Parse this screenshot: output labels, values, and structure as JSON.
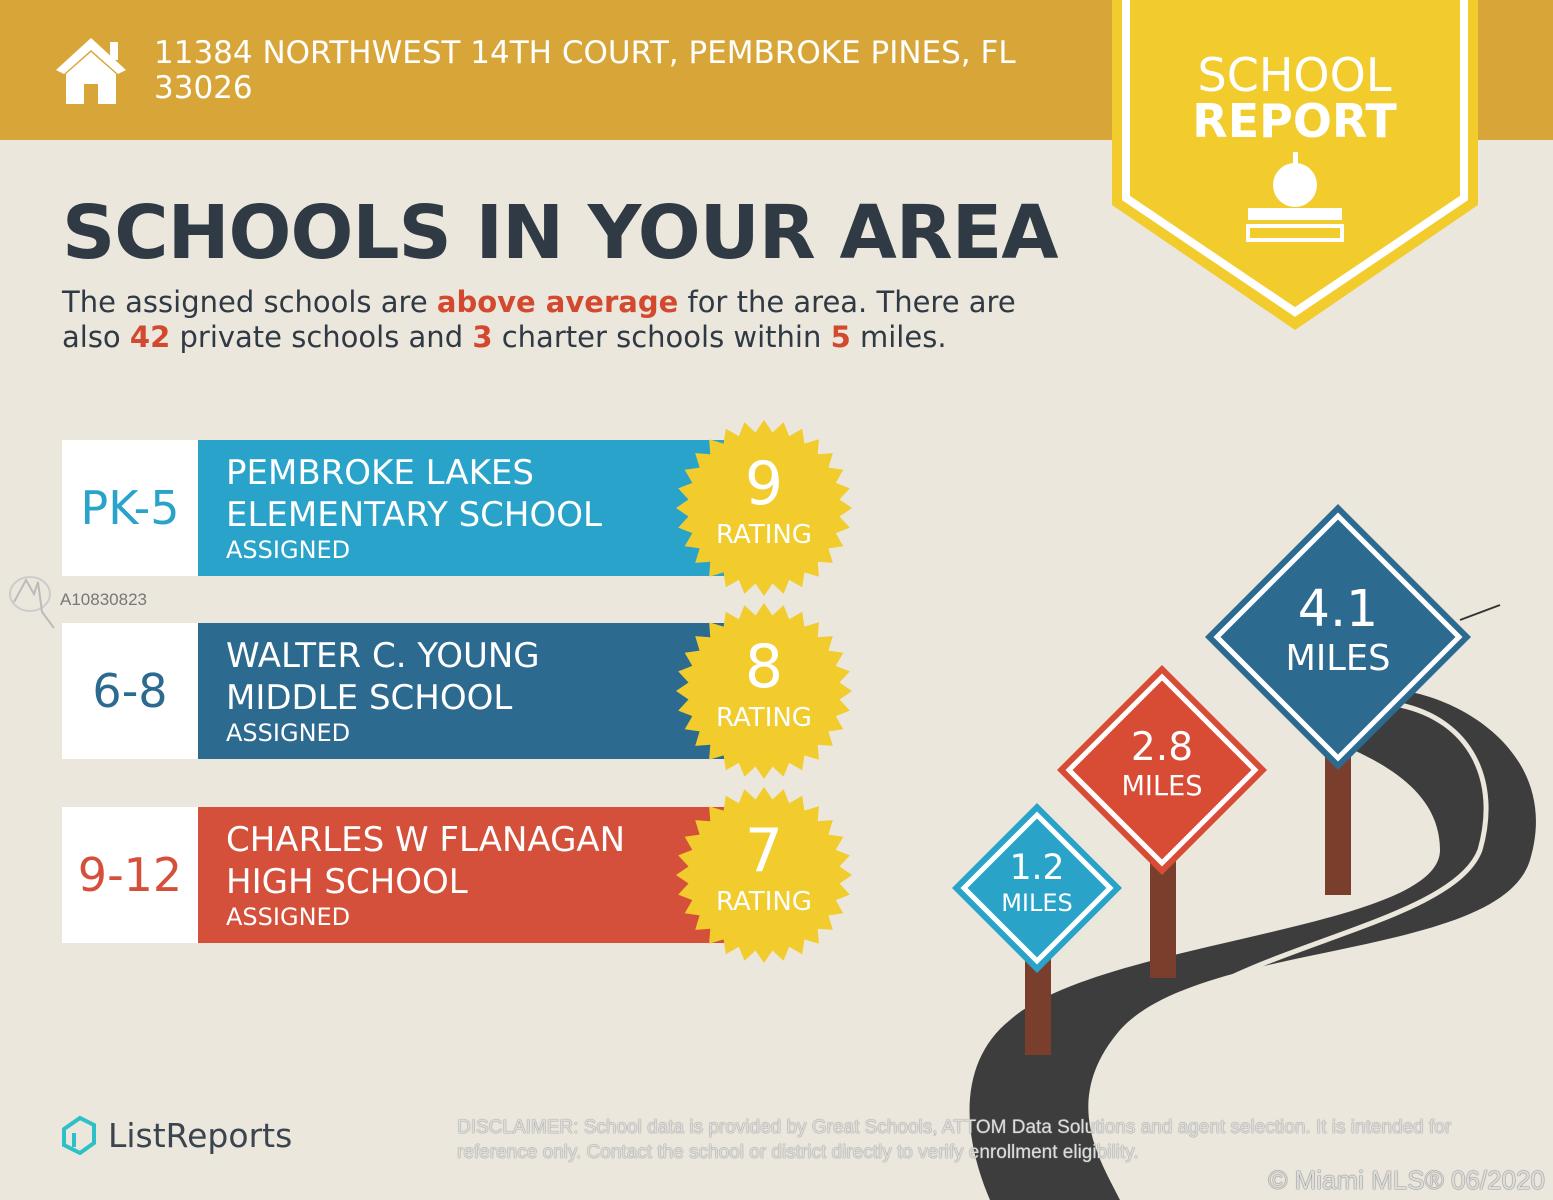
{
  "header": {
    "address": "11384 NORTHWEST 14TH COURT, PEMBROKE PINES, FL 33026",
    "badge_line1": "SCHOOL",
    "badge_line2": "REPORT"
  },
  "title": "SCHOOLS IN YOUR AREA",
  "summary": {
    "t1": "The assigned schools are ",
    "hl1": "above average",
    "t2": " for the area. There are also ",
    "hl2": "42",
    "t3": " private schools and ",
    "hl3": "3",
    "t4": " charter schools within ",
    "hl4": "5",
    "t5": " miles."
  },
  "schools": [
    {
      "grade": "PK-5",
      "name1": "PEMBROKE LAKES",
      "name2": "ELEMENTARY SCHOOL",
      "status": "ASSIGNED",
      "rating": "9",
      "rating_label": "RATING",
      "color": "#29a3c9",
      "grade_color": "#29a3c9"
    },
    {
      "grade": "6-8",
      "name1": "WALTER C. YOUNG",
      "name2": "MIDDLE SCHOOL",
      "status": "ASSIGNED",
      "rating": "8",
      "rating_label": "RATING",
      "color": "#2c6a90",
      "grade_color": "#2c6a90"
    },
    {
      "grade": "9-12",
      "name1": "CHARLES W FLANAGAN",
      "name2": "HIGH SCHOOL",
      "status": "ASSIGNED",
      "rating": "7",
      "rating_label": "RATING",
      "color": "#d5503a",
      "grade_color": "#d5503a"
    }
  ],
  "signs": [
    {
      "value": "1.2",
      "unit": "MILES",
      "color": "#2aa3c9"
    },
    {
      "value": "2.8",
      "unit": "MILES",
      "color": "#d84b34"
    },
    {
      "value": "4.1",
      "unit": "MILES",
      "color": "#2c6a90"
    }
  ],
  "watermark": {
    "id": "A10830823"
  },
  "footer": {
    "logo": "ListReports",
    "disclaimer_label": "DISCLAIMER:",
    "disclaimer": " School data is provided by Great Schools, ATTOM Data Solutions and agent selection. It is intended for reference only. Contact the school or district directly to verify enrollment eligibility.",
    "copyright": "© Miami MLS® 06/2020"
  },
  "colors": {
    "header": "#d8a638",
    "badge": "#f2cb2c",
    "accent": "#d2492f",
    "background": "#ebe7dc"
  }
}
